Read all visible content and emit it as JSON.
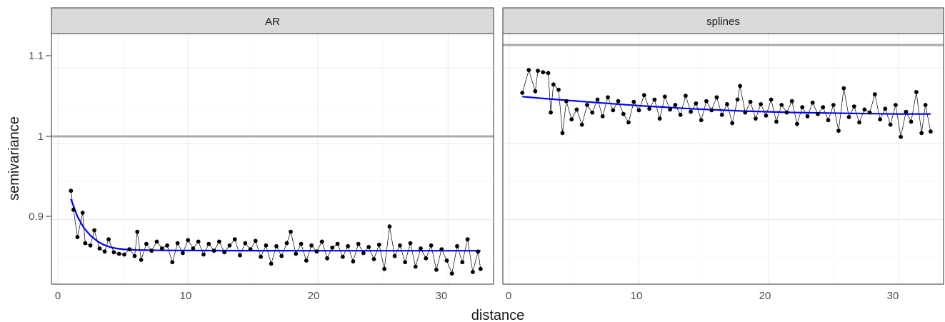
{
  "chart_data": {
    "type": "scatter",
    "facet_labels": [
      "AR",
      "splines"
    ],
    "xlabel": "distance",
    "ylabel": "semivariance",
    "x_ticks": [
      0,
      10,
      20,
      30
    ],
    "y_ticks": [
      0.9,
      1.0,
      1.1
    ],
    "xlim": [
      -0.5,
      33.5
    ],
    "ylim": [
      0.815,
      1.145
    ],
    "grid": true,
    "reference_line": 1.0,
    "colors": {
      "points": "#000000",
      "fit": "#0000ff",
      "reference": "#aaaaaa",
      "strip": "#d9d9d9"
    },
    "panels": [
      {
        "name": "AR",
        "points": [
          [
            1.0,
            0.938
          ],
          [
            1.2,
            0.913
          ],
          [
            1.5,
            0.877
          ],
          [
            1.9,
            0.909
          ],
          [
            2.1,
            0.869
          ],
          [
            2.5,
            0.866
          ],
          [
            2.8,
            0.886
          ],
          [
            3.2,
            0.862
          ],
          [
            3.6,
            0.858
          ],
          [
            3.9,
            0.874
          ],
          [
            4.3,
            0.857
          ],
          [
            4.7,
            0.855
          ],
          [
            5.1,
            0.854
          ],
          [
            5.5,
            0.861
          ],
          [
            5.9,
            0.852
          ],
          [
            6.1,
            0.884
          ],
          [
            6.4,
            0.847
          ],
          [
            6.8,
            0.868
          ],
          [
            7.2,
            0.859
          ],
          [
            7.6,
            0.871
          ],
          [
            8.0,
            0.862
          ],
          [
            8.4,
            0.866
          ],
          [
            8.8,
            0.844
          ],
          [
            9.2,
            0.869
          ],
          [
            9.6,
            0.856
          ],
          [
            10.0,
            0.873
          ],
          [
            10.4,
            0.862
          ],
          [
            10.8,
            0.871
          ],
          [
            11.2,
            0.854
          ],
          [
            11.6,
            0.868
          ],
          [
            12.0,
            0.859
          ],
          [
            12.4,
            0.871
          ],
          [
            12.8,
            0.857
          ],
          [
            13.2,
            0.866
          ],
          [
            13.6,
            0.874
          ],
          [
            14.0,
            0.853
          ],
          [
            14.4,
            0.869
          ],
          [
            14.8,
            0.861
          ],
          [
            15.2,
            0.872
          ],
          [
            15.6,
            0.851
          ],
          [
            16.0,
            0.866
          ],
          [
            16.4,
            0.842
          ],
          [
            16.8,
            0.865
          ],
          [
            17.2,
            0.852
          ],
          [
            17.6,
            0.869
          ],
          [
            17.9,
            0.884
          ],
          [
            18.3,
            0.855
          ],
          [
            18.7,
            0.868
          ],
          [
            19.1,
            0.846
          ],
          [
            19.5,
            0.866
          ],
          [
            19.9,
            0.858
          ],
          [
            20.3,
            0.871
          ],
          [
            20.7,
            0.849
          ],
          [
            21.1,
            0.863
          ],
          [
            21.5,
            0.868
          ],
          [
            21.9,
            0.851
          ],
          [
            22.3,
            0.865
          ],
          [
            22.7,
            0.845
          ],
          [
            23.1,
            0.868
          ],
          [
            23.5,
            0.856
          ],
          [
            23.9,
            0.864
          ],
          [
            24.3,
            0.848
          ],
          [
            24.7,
            0.867
          ],
          [
            25.1,
            0.835
          ],
          [
            25.5,
            0.891
          ],
          [
            25.9,
            0.852
          ],
          [
            26.3,
            0.866
          ],
          [
            26.7,
            0.844
          ],
          [
            27.1,
            0.869
          ],
          [
            27.5,
            0.838
          ],
          [
            27.9,
            0.862
          ],
          [
            28.3,
            0.849
          ],
          [
            28.7,
            0.866
          ],
          [
            29.1,
            0.834
          ],
          [
            29.5,
            0.861
          ],
          [
            29.9,
            0.846
          ],
          [
            30.3,
            0.829
          ],
          [
            30.7,
            0.865
          ],
          [
            31.1,
            0.844
          ],
          [
            31.5,
            0.874
          ],
          [
            31.9,
            0.831
          ],
          [
            32.3,
            0.858
          ],
          [
            32.5,
            0.835
          ]
        ],
        "fit": [
          [
            1.0,
            0.927
          ],
          [
            1.5,
            0.904
          ],
          [
            2.0,
            0.889
          ],
          [
            2.5,
            0.879
          ],
          [
            3.0,
            0.872
          ],
          [
            3.5,
            0.867
          ],
          [
            4.0,
            0.864
          ],
          [
            4.5,
            0.862
          ],
          [
            5.0,
            0.861
          ],
          [
            6.0,
            0.86
          ],
          [
            8.0,
            0.8595
          ],
          [
            12.0,
            0.8592
          ],
          [
            16.0,
            0.8591
          ],
          [
            20.0,
            0.859
          ],
          [
            24.0,
            0.859
          ],
          [
            28.0,
            0.859
          ],
          [
            32.5,
            0.859
          ]
        ]
      },
      {
        "name": "splines",
        "points": [
          [
            1.0,
            1.067
          ],
          [
            1.5,
            1.097
          ],
          [
            2.0,
            1.069
          ],
          [
            2.2,
            1.096
          ],
          [
            2.6,
            1.094
          ],
          [
            3.0,
            1.093
          ],
          [
            3.2,
            1.041
          ],
          [
            3.4,
            1.078
          ],
          [
            3.8,
            1.071
          ],
          [
            4.1,
            1.014
          ],
          [
            4.4,
            1.056
          ],
          [
            4.8,
            1.032
          ],
          [
            5.2,
            1.045
          ],
          [
            5.6,
            1.025
          ],
          [
            6.0,
            1.051
          ],
          [
            6.4,
            1.041
          ],
          [
            6.8,
            1.058
          ],
          [
            7.2,
            1.036
          ],
          [
            7.6,
            1.061
          ],
          [
            8.0,
            1.044
          ],
          [
            8.4,
            1.056
          ],
          [
            8.8,
            1.039
          ],
          [
            9.2,
            1.028
          ],
          [
            9.6,
            1.055
          ],
          [
            10.0,
            1.044
          ],
          [
            10.4,
            1.064
          ],
          [
            10.8,
            1.046
          ],
          [
            11.2,
            1.058
          ],
          [
            11.6,
            1.033
          ],
          [
            12.0,
            1.062
          ],
          [
            12.4,
            1.045
          ],
          [
            12.8,
            1.051
          ],
          [
            13.2,
            1.038
          ],
          [
            13.6,
            1.063
          ],
          [
            14.0,
            1.042
          ],
          [
            14.4,
            1.053
          ],
          [
            14.8,
            1.031
          ],
          [
            15.2,
            1.056
          ],
          [
            15.6,
            1.044
          ],
          [
            16.0,
            1.061
          ],
          [
            16.4,
            1.038
          ],
          [
            16.8,
            1.052
          ],
          [
            17.2,
            1.027
          ],
          [
            17.6,
            1.058
          ],
          [
            17.8,
            1.076
          ],
          [
            18.2,
            1.041
          ],
          [
            18.6,
            1.055
          ],
          [
            19.0,
            1.033
          ],
          [
            19.4,
            1.052
          ],
          [
            19.8,
            1.037
          ],
          [
            20.2,
            1.058
          ],
          [
            20.6,
            1.029
          ],
          [
            21.0,
            1.051
          ],
          [
            21.4,
            1.041
          ],
          [
            21.8,
            1.056
          ],
          [
            22.2,
            1.026
          ],
          [
            22.6,
            1.048
          ],
          [
            23.0,
            1.036
          ],
          [
            23.4,
            1.054
          ],
          [
            23.8,
            1.039
          ],
          [
            24.2,
            1.048
          ],
          [
            24.6,
            1.031
          ],
          [
            25.0,
            1.051
          ],
          [
            25.4,
            1.017
          ],
          [
            25.8,
            1.073
          ],
          [
            26.2,
            1.035
          ],
          [
            26.6,
            1.049
          ],
          [
            27.0,
            1.028
          ],
          [
            27.4,
            1.045
          ],
          [
            27.8,
            1.041
          ],
          [
            28.2,
            1.065
          ],
          [
            28.6,
            1.032
          ],
          [
            29.0,
            1.046
          ],
          [
            29.4,
            1.025
          ],
          [
            29.8,
            1.051
          ],
          [
            30.2,
            1.009
          ],
          [
            30.6,
            1.042
          ],
          [
            31.0,
            1.029
          ],
          [
            31.4,
            1.068
          ],
          [
            31.8,
            1.014
          ],
          [
            32.1,
            1.051
          ],
          [
            32.5,
            1.016
          ]
        ],
        "fit": [
          [
            1.0,
            1.062
          ],
          [
            3.0,
            1.059
          ],
          [
            6.0,
            1.055
          ],
          [
            10.0,
            1.05
          ],
          [
            14.0,
            1.046
          ],
          [
            18.0,
            1.043
          ],
          [
            22.0,
            1.041
          ],
          [
            26.0,
            1.04
          ],
          [
            30.0,
            1.039
          ],
          [
            32.5,
            1.039
          ]
        ]
      }
    ]
  }
}
